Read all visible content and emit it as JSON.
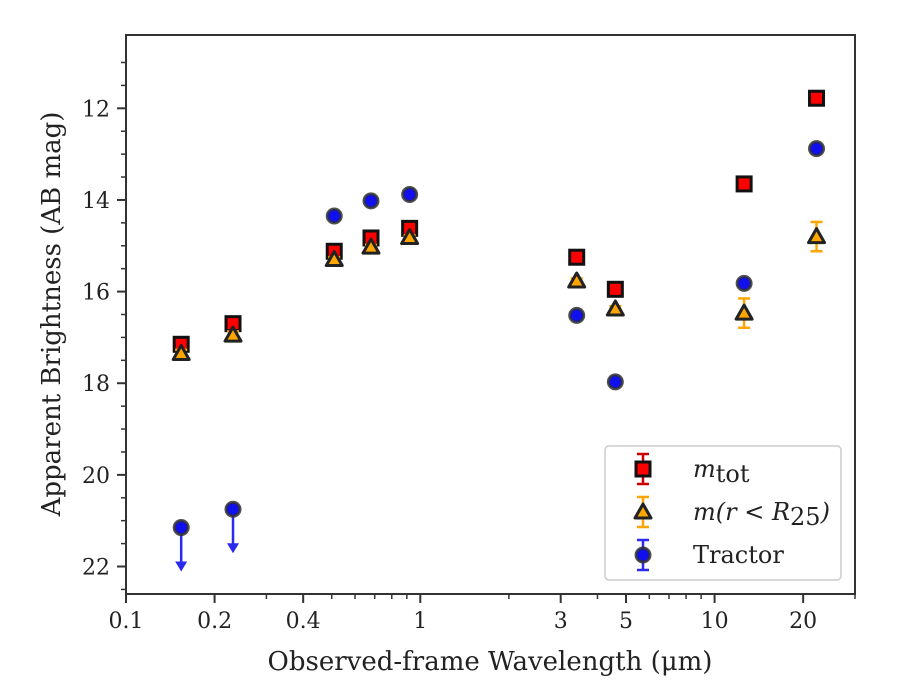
{
  "chart_data": {
    "type": "scatter",
    "xlabel": "Observed-frame Wavelength (μm)",
    "ylabel": "Apparent Brightness (AB mag)",
    "xscale": "log",
    "xlim": [
      0.1,
      30
    ],
    "ylim": [
      22.6,
      10.4
    ],
    "y_inverted": true,
    "x_ticks": [
      {
        "value": 0.1,
        "label": "0.1"
      },
      {
        "value": 0.2,
        "label": "0.2"
      },
      {
        "value": 0.4,
        "label": "0.4"
      },
      {
        "value": 1,
        "label": "1"
      },
      {
        "value": 3,
        "label": "3"
      },
      {
        "value": 5,
        "label": "5"
      },
      {
        "value": 10,
        "label": "10"
      },
      {
        "value": 20,
        "label": "20"
      }
    ],
    "y_ticks": [
      {
        "value": 12,
        "label": "12"
      },
      {
        "value": 14,
        "label": "14"
      },
      {
        "value": 16,
        "label": "16"
      },
      {
        "value": 18,
        "label": "18"
      },
      {
        "value": 20,
        "label": "20"
      },
      {
        "value": 22,
        "label": "22"
      }
    ],
    "legend_position": "bottom-right",
    "series": [
      {
        "name": "m_tot",
        "legend_base": "m",
        "legend_sub": "tot",
        "marker": "square",
        "fill": "#ff0000",
        "edge": "#111111",
        "errcolor": "#cc0000",
        "points": [
          {
            "x": 0.154,
            "y": 17.15
          },
          {
            "x": 0.231,
            "y": 16.7
          },
          {
            "x": 0.51,
            "y": 15.12
          },
          {
            "x": 0.68,
            "y": 14.83
          },
          {
            "x": 0.92,
            "y": 14.62
          },
          {
            "x": 3.4,
            "y": 15.25
          },
          {
            "x": 4.6,
            "y": 15.95
          },
          {
            "x": 12.6,
            "y": 13.65
          },
          {
            "x": 22.2,
            "y": 11.78
          }
        ]
      },
      {
        "name": "m(r<R25)",
        "legend_base": "m(r < R",
        "legend_sub": "25",
        "legend_tail": ")",
        "marker": "triangle",
        "fill": "#ffa500",
        "edge": "#222222",
        "errcolor": "#ffa500",
        "points": [
          {
            "x": 0.154,
            "y": 17.35,
            "err": 0.08
          },
          {
            "x": 0.231,
            "y": 16.95,
            "err": 0.08
          },
          {
            "x": 0.51,
            "y": 15.3,
            "err": 0.05
          },
          {
            "x": 0.68,
            "y": 15.03,
            "err": 0.05
          },
          {
            "x": 0.92,
            "y": 14.82,
            "err": 0.05
          },
          {
            "x": 3.4,
            "y": 15.77,
            "err": 0.06
          },
          {
            "x": 4.6,
            "y": 16.38,
            "err": 0.06
          },
          {
            "x": 12.6,
            "y": 16.47,
            "err": 0.32
          },
          {
            "x": 22.2,
            "y": 14.8,
            "err": 0.32
          }
        ]
      },
      {
        "name": "Tractor",
        "legend_base": "Tractor",
        "marker": "circle",
        "fill": "#1010ee",
        "edge": "#333333",
        "errcolor": "#2a2aee",
        "points": [
          {
            "x": 0.154,
            "y": 21.15,
            "upper_limit": true
          },
          {
            "x": 0.231,
            "y": 20.75,
            "upper_limit": true
          },
          {
            "x": 0.51,
            "y": 14.35
          },
          {
            "x": 0.68,
            "y": 14.02
          },
          {
            "x": 0.92,
            "y": 13.88
          },
          {
            "x": 3.4,
            "y": 16.52
          },
          {
            "x": 4.6,
            "y": 17.97
          },
          {
            "x": 12.6,
            "y": 15.82
          },
          {
            "x": 22.2,
            "y": 12.88
          }
        ]
      }
    ]
  }
}
